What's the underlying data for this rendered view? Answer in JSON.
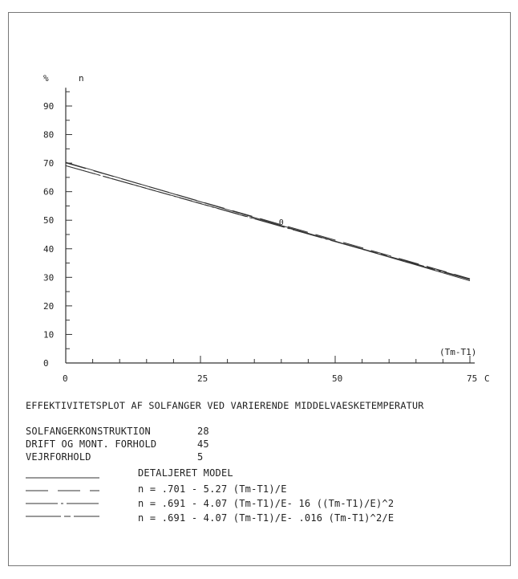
{
  "chart_data": {
    "type": "line",
    "y_unit_label": "%",
    "y_label": "n",
    "x_label": "(Tm-T1)",
    "x_unit": "C",
    "xlim": [
      0,
      75
    ],
    "ylim": [
      0,
      95
    ],
    "x_ticks": [
      "0",
      "25",
      "50",
      "75"
    ],
    "y_ticks": [
      "10",
      "20",
      "30",
      "40",
      "50",
      "60",
      "70",
      "80",
      "90"
    ],
    "y_zero_label": "0",
    "title": "EFFEKTIVITETSPLOT AF SOLFANGER VED VARIERENDE MIDDELVAESKETEMPERATUR",
    "info": [
      {
        "label": "SOLFANGERKONSTRUKTION",
        "value": "28"
      },
      {
        "label": "DRIFT OG MONT. FORHOLD",
        "value": "45"
      },
      {
        "label": "VEJRFORHOLD",
        "value": "5"
      }
    ],
    "series": [
      {
        "name": "DETALJERET MODEL",
        "dash": "solid",
        "x": [
          0,
          75
        ],
        "y": [
          70.3,
          28.8
        ]
      },
      {
        "name": "n = .701 - 5.27 (Tm-T1)/E",
        "dash": "long",
        "x": [
          0,
          75
        ],
        "y": [
          70.1,
          29.5
        ]
      },
      {
        "name": "n = .691 - 4.07 (Tm-T1)/E- 16 ((Tm-T1)/E)^2",
        "dash": "dashdot",
        "x": [
          0,
          75
        ],
        "y": [
          69.1,
          29.2
        ]
      },
      {
        "name": "n = .691 - 4.07 (Tm-T1)/E- .016 (Tm-T1)^2/E",
        "dash": "dashdot2",
        "x": [
          0,
          75
        ],
        "y": [
          69.1,
          29.4
        ]
      }
    ],
    "point_marker": {
      "x": 40,
      "y": 49.5,
      "label": "0"
    }
  }
}
